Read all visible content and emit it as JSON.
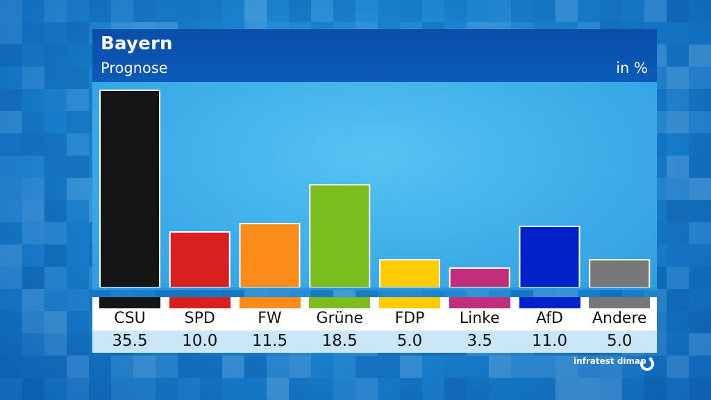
{
  "header": {
    "title": "Bayern",
    "subtitle": "Prognose",
    "unit": "in %"
  },
  "source": {
    "label": "infratest dimap",
    "logo_icon": "infratest-dimap-logo-icon"
  },
  "colors": {
    "header_bg": "#0b52ae",
    "bar_border": "#ffffff",
    "value_row_bg": "#cbe6f7"
  },
  "chart_data": {
    "type": "bar",
    "title": "Bayern",
    "subtitle": "Prognose",
    "ylabel": "in %",
    "ylim": [
      0,
      36
    ],
    "grid": false,
    "categories": [
      "CSU",
      "SPD",
      "FW",
      "Grüne",
      "FDP",
      "Linke",
      "AfD",
      "Andere"
    ],
    "values": [
      35.5,
      10.0,
      11.5,
      18.5,
      5.0,
      3.5,
      11.0,
      5.0
    ],
    "value_labels": [
      "35.5",
      "10.0",
      "11.5",
      "18.5",
      "5.0",
      "3.5",
      "11.0",
      "5.0"
    ],
    "colors": [
      "#151515",
      "#d9201f",
      "#fb8c1a",
      "#7cbd1e",
      "#ffcc00",
      "#c02e7c",
      "#0022c8",
      "#777777"
    ]
  }
}
